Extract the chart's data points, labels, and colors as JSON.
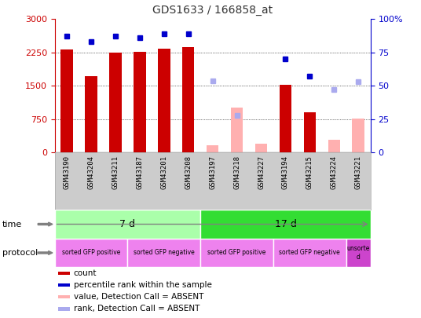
{
  "title": "GDS1633 / 166858_at",
  "samples": [
    "GSM43190",
    "GSM43204",
    "GSM43211",
    "GSM43187",
    "GSM43201",
    "GSM43208",
    "GSM43197",
    "GSM43218",
    "GSM43227",
    "GSM43194",
    "GSM43215",
    "GSM43224",
    "GSM43221"
  ],
  "count_values": [
    2310,
    1720,
    2250,
    2260,
    2340,
    2370,
    null,
    null,
    null,
    1530,
    900,
    null,
    null
  ],
  "count_absent": [
    null,
    null,
    null,
    null,
    null,
    null,
    170,
    1020,
    200,
    null,
    null,
    290,
    760
  ],
  "percentile_present": [
    87,
    83,
    87,
    86,
    89,
    89,
    null,
    null,
    null,
    70,
    57,
    null,
    null
  ],
  "percentile_absent": [
    null,
    null,
    null,
    null,
    null,
    null,
    54,
    28,
    null,
    null,
    null,
    47,
    53
  ],
  "ylim_left": [
    0,
    3000
  ],
  "ylim_right": [
    0,
    100
  ],
  "yticks_left": [
    0,
    750,
    1500,
    2250,
    3000
  ],
  "yticks_right": [
    0,
    25,
    50,
    75,
    100
  ],
  "ytick_labels_left": [
    "0",
    "750",
    "1500",
    "2250",
    "3000"
  ],
  "ytick_labels_right": [
    "0",
    "25",
    "50",
    "75",
    "100%"
  ],
  "time_groups": [
    {
      "label": "7 d",
      "start": 0,
      "end": 6,
      "color": "#aaffaa"
    },
    {
      "label": "17 d",
      "start": 6,
      "end": 13,
      "color": "#33dd33"
    }
  ],
  "protocol_groups": [
    {
      "label": "sorted GFP positive",
      "start": 0,
      "end": 3,
      "color": "#ee82ee"
    },
    {
      "label": "sorted GFP negative",
      "start": 3,
      "end": 6,
      "color": "#ee82ee"
    },
    {
      "label": "sorted GFP positive",
      "start": 6,
      "end": 9,
      "color": "#ee82ee"
    },
    {
      "label": "sorted GFP negative",
      "start": 9,
      "end": 12,
      "color": "#ee82ee"
    },
    {
      "label": "unsorte\nd",
      "start": 12,
      "end": 13,
      "color": "#cc44cc"
    }
  ],
  "bar_width": 0.5,
  "count_color": "#cc0000",
  "count_absent_color": "#ffb0b0",
  "percentile_color": "#0000cc",
  "percentile_absent_color": "#aaaaee",
  "bg_color": "#ffffff",
  "grid_color": "#000000",
  "title_color": "#333333",
  "xlabels_bg": "#cccccc",
  "legend_items": [
    {
      "color": "#cc0000",
      "label": "count",
      "marker": "s"
    },
    {
      "color": "#0000cc",
      "label": "percentile rank within the sample",
      "marker": "s"
    },
    {
      "color": "#ffb0b0",
      "label": "value, Detection Call = ABSENT",
      "marker": "s"
    },
    {
      "color": "#aaaaee",
      "label": "rank, Detection Call = ABSENT",
      "marker": "s"
    }
  ]
}
